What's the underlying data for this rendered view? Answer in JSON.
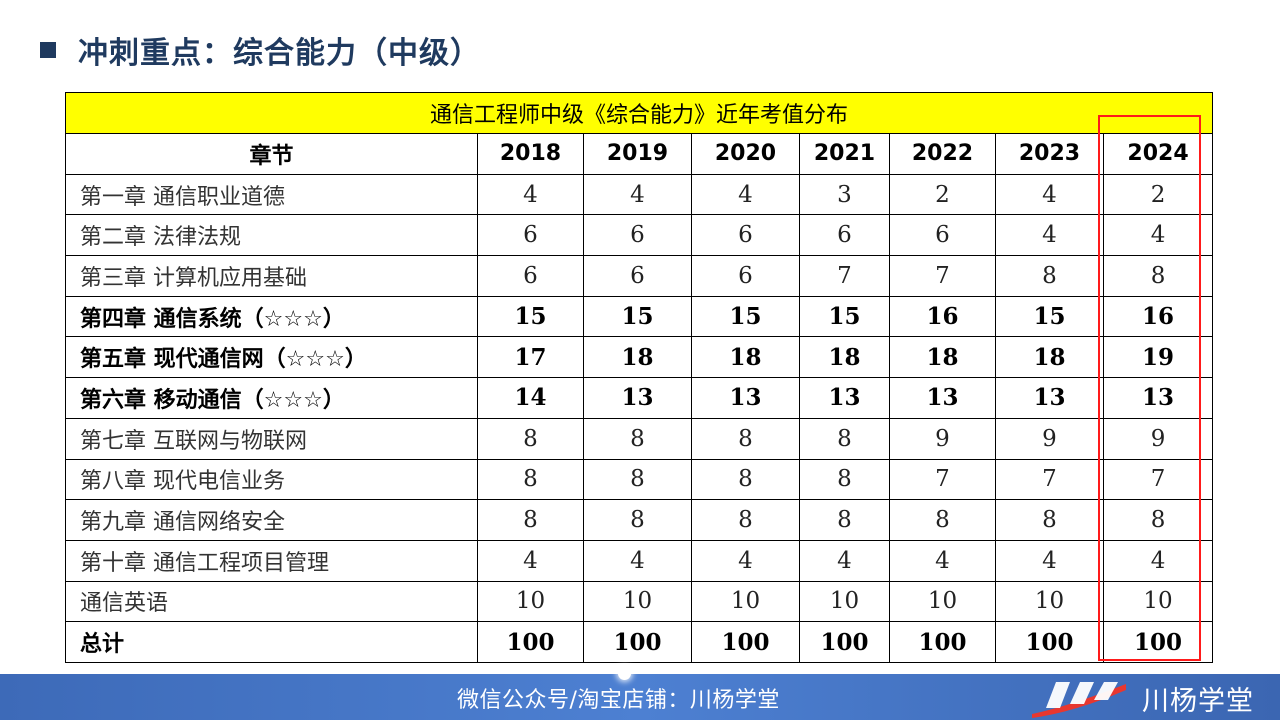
{
  "slide": {
    "title": "冲刺重点：综合能力（中级）"
  },
  "table": {
    "caption": "通信工程师中级《综合能力》近年考值分布",
    "header": [
      "章节",
      "2018",
      "2019",
      "2020",
      "2021",
      "2022",
      "2023",
      "2024"
    ],
    "rows": [
      {
        "chapter": "第一章  通信职业道德",
        "values": [
          "4",
          "4",
          "4",
          "3",
          "2",
          "4",
          "2"
        ]
      },
      {
        "chapter": "第二章  法律法规",
        "values": [
          "6",
          "6",
          "6",
          "6",
          "6",
          "4",
          "4"
        ]
      },
      {
        "chapter": "第三章  计算机应用基础",
        "values": [
          "6",
          "6",
          "6",
          "7",
          "7",
          "8",
          "8"
        ]
      },
      {
        "chapter": "第四章  通信系统（☆☆☆）",
        "values": [
          "15",
          "15",
          "15",
          "15",
          "16",
          "15",
          "16"
        ]
      },
      {
        "chapter": "第五章  现代通信网（☆☆☆）",
        "values": [
          "17",
          "18",
          "18",
          "18",
          "18",
          "18",
          "19"
        ]
      },
      {
        "chapter": "第六章  移动通信（☆☆☆）",
        "values": [
          "14",
          "13",
          "13",
          "13",
          "13",
          "13",
          "13"
        ]
      },
      {
        "chapter": "第七章  互联网与物联网",
        "values": [
          "8",
          "8",
          "8",
          "8",
          "9",
          "9",
          "9"
        ]
      },
      {
        "chapter": "第八章  现代电信业务",
        "values": [
          "8",
          "8",
          "8",
          "8",
          "7",
          "7",
          "7"
        ]
      },
      {
        "chapter": "第九章  通信网络安全",
        "values": [
          "8",
          "8",
          "8",
          "8",
          "8",
          "8",
          "8"
        ]
      },
      {
        "chapter": "第十章  通信工程项目管理",
        "values": [
          "4",
          "4",
          "4",
          "4",
          "4",
          "4",
          "4"
        ]
      },
      {
        "chapter": "通信英语",
        "values": [
          "10",
          "10",
          "10",
          "10",
          "10",
          "10",
          "10"
        ]
      },
      {
        "chapter": "总计",
        "values": [
          "100",
          "100",
          "100",
          "100",
          "100",
          "100",
          "100"
        ]
      }
    ]
  },
  "footer": {
    "text": "微信公众号/淘宝店铺：川杨学堂",
    "logo_text": "川杨学堂"
  },
  "colors": {
    "title": "#1f3a5f",
    "caption_bg": "#ffff00",
    "highlight": "#ff1a1a",
    "footer_bg": "#4a7bc8"
  }
}
